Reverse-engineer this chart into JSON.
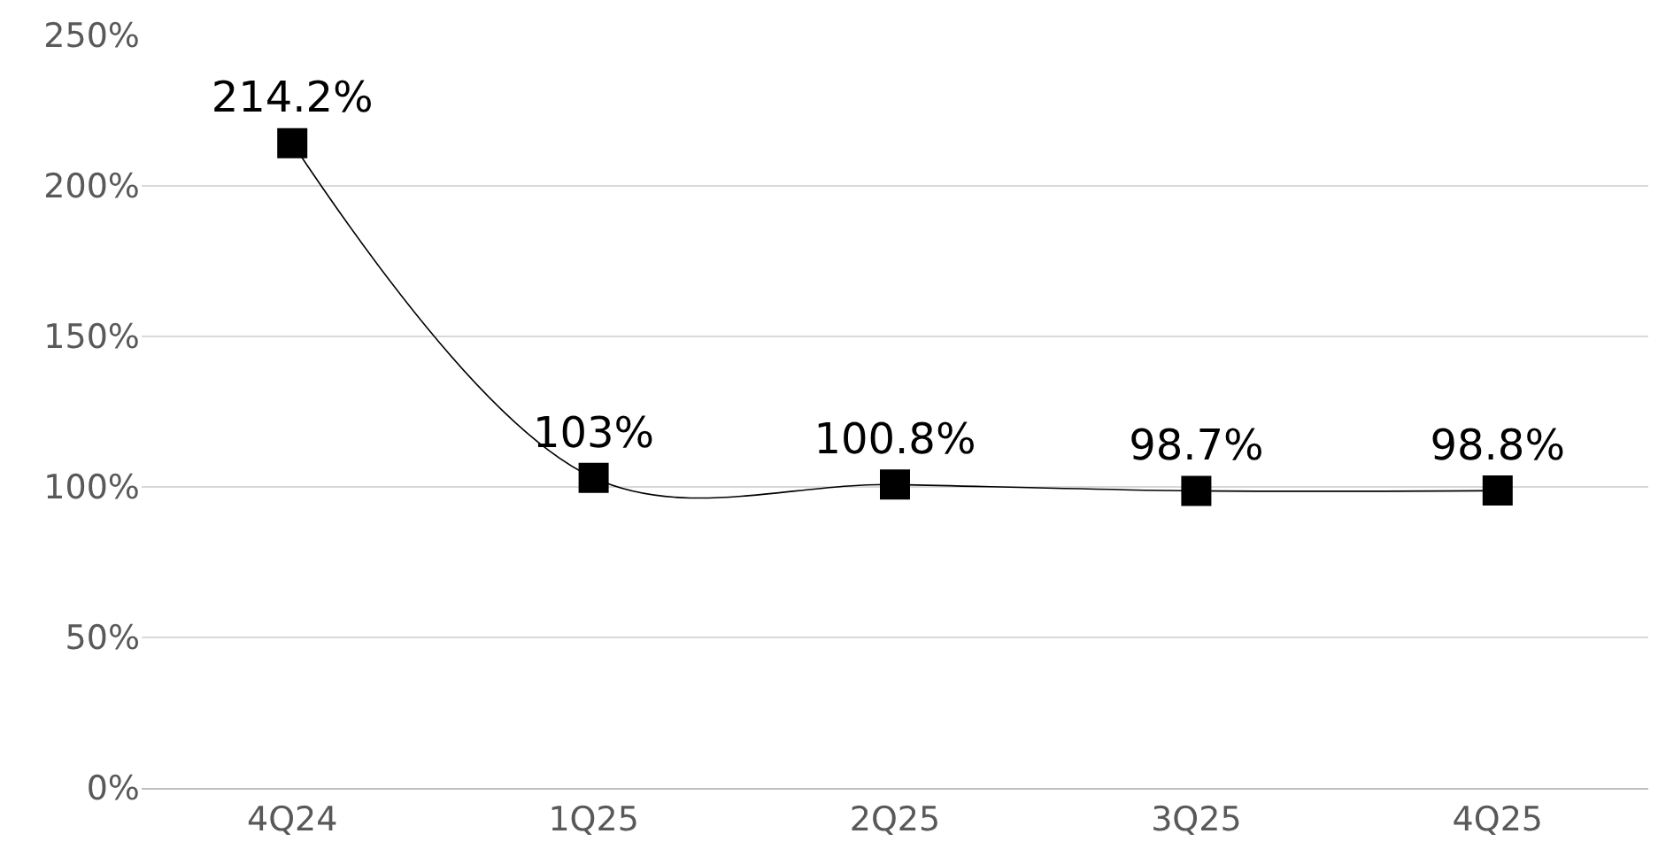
{
  "chart_data": {
    "type": "line",
    "categories": [
      "4Q24",
      "1Q25",
      "2Q25",
      "3Q25",
      "4Q25"
    ],
    "series": [
      {
        "color": "#000000",
        "values": [
          214.2,
          103,
          100.8,
          98.7,
          98.8
        ],
        "value_labels": [
          "214.2%",
          "103%",
          "100.8%",
          "98.7%",
          "98.8%"
        ]
      }
    ],
    "ylim": [
      0,
      250
    ],
    "yticks": [
      {
        "value": 0,
        "label": "0%"
      },
      {
        "value": 50,
        "label": "50%"
      },
      {
        "value": 100,
        "label": "100%"
      },
      {
        "value": 150,
        "label": "150%"
      },
      {
        "value": 200,
        "label": "200%"
      },
      {
        "value": 250,
        "label": "250%"
      }
    ],
    "grid": "y",
    "marker": "square",
    "line_style": "solid",
    "legend": false
  }
}
